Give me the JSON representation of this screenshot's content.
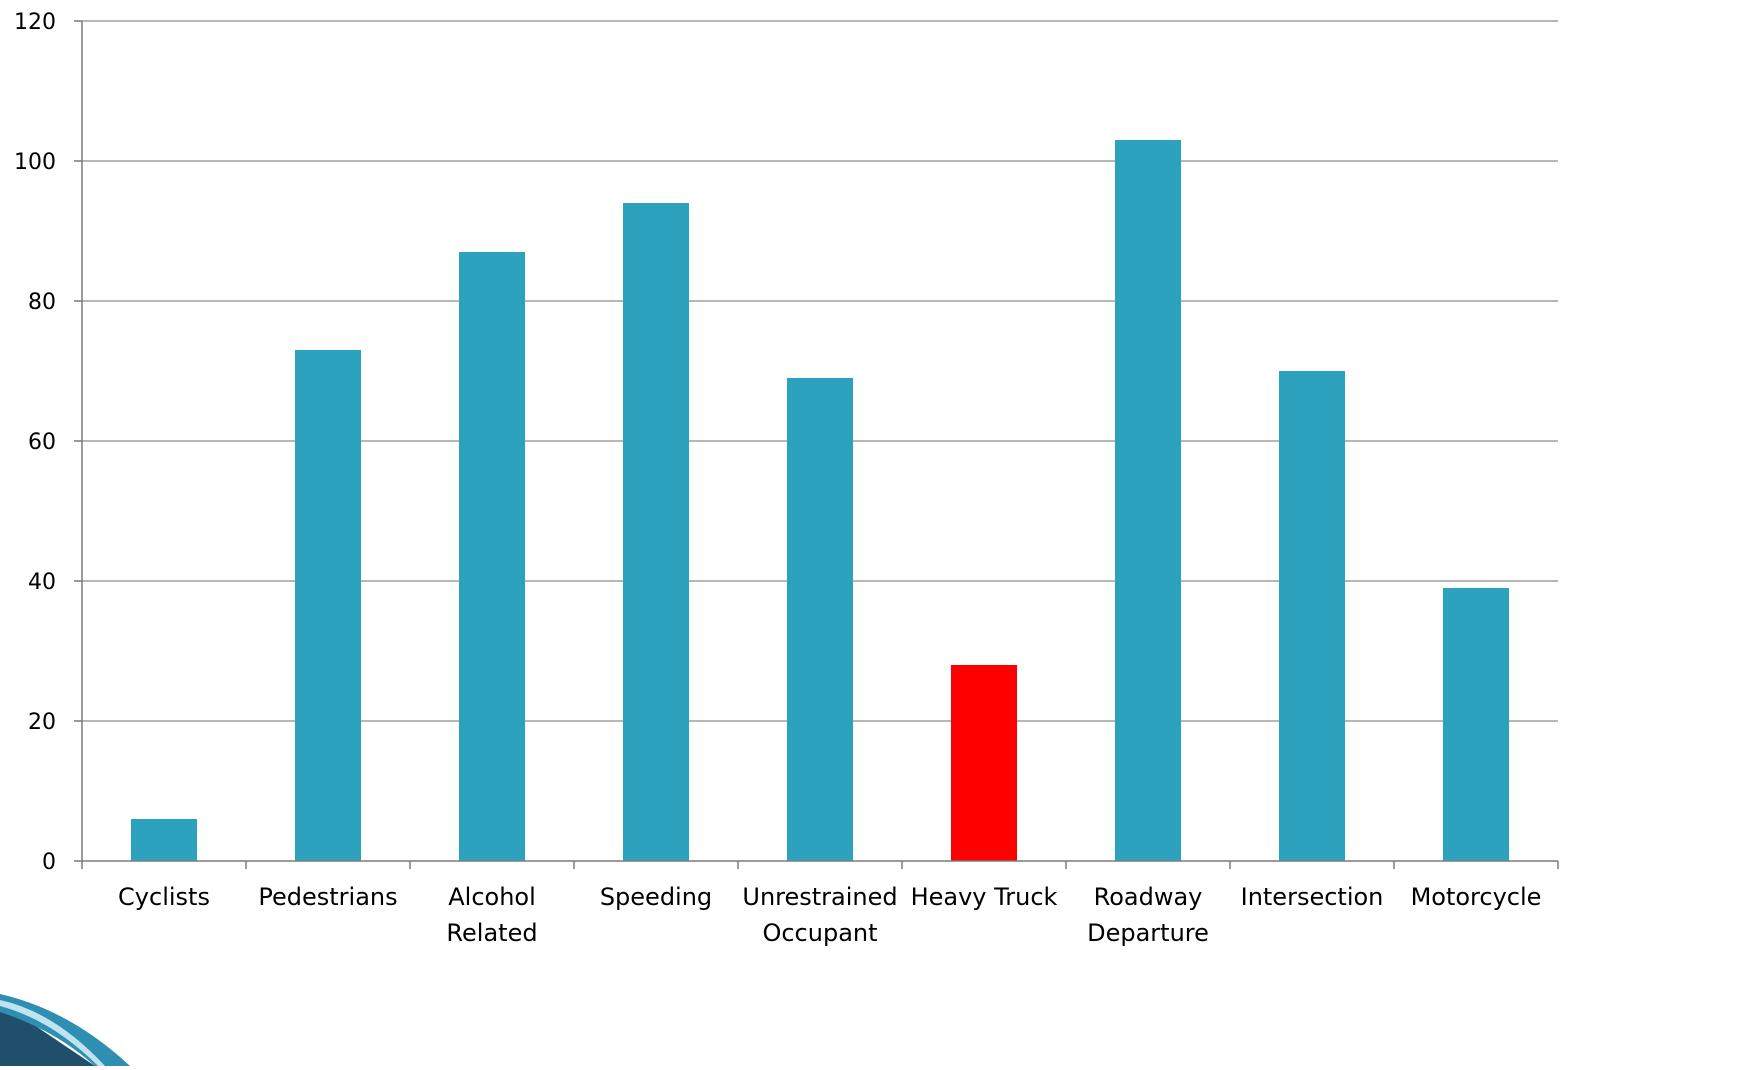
{
  "chart_data": {
    "type": "bar",
    "title": "",
    "xlabel": "",
    "ylabel": "",
    "ylim": [
      0,
      120
    ],
    "yticks": [
      0,
      20,
      40,
      60,
      80,
      100,
      120
    ],
    "grid": "horizontal",
    "legend": "none",
    "categories": [
      "Cyclists",
      "Pedestrians",
      "Alcohol Related",
      "Speeding",
      "Unrestrained Occupant",
      "Heavy Truck",
      "Roadway Departure",
      "Intersection",
      "Motorcycle"
    ],
    "values": [
      6,
      73,
      87,
      94,
      69,
      28,
      103,
      70,
      39
    ],
    "colors": {
      "default": "#2ca2bf",
      "highlight": "#ff0000"
    },
    "highlighted_category": "Heavy Truck"
  }
}
